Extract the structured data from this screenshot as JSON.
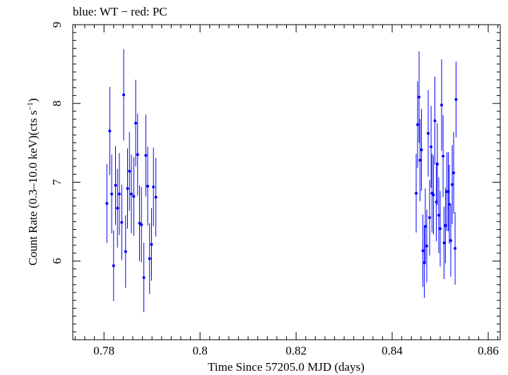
{
  "chart_data": {
    "type": "scatter",
    "title": "blue: WT − red: PC",
    "xlabel": "Time Since 57205.0 MJD (days)",
    "ylabel_main": "Count Rate (0.3–10.0 keV)(cts s",
    "ylabel_sup": "−1",
    "ylabel_end": ")",
    "xlim": [
      0.7735,
      0.8625
    ],
    "ylim": [
      5.0,
      9.0
    ],
    "x_ticks": [
      0.78,
      0.8,
      0.82,
      0.84,
      0.86
    ],
    "x_tick_labels": [
      "0.78",
      "0.8",
      "0.82",
      "0.84",
      "0.86"
    ],
    "y_ticks": [
      6,
      7,
      8,
      9
    ],
    "y_tick_labels": [
      "6",
      "7",
      "8",
      "9"
    ],
    "grid": false,
    "series": [
      {
        "name": "WT",
        "color": "#0000ff",
        "points": [
          {
            "x": 0.7806,
            "y": 6.73,
            "err": 0.5
          },
          {
            "x": 0.7812,
            "y": 7.65,
            "err": 0.56
          },
          {
            "x": 0.7816,
            "y": 6.85,
            "err": 0.5
          },
          {
            "x": 0.782,
            "y": 5.94,
            "err": 0.45
          },
          {
            "x": 0.7824,
            "y": 6.96,
            "err": 0.5
          },
          {
            "x": 0.7828,
            "y": 6.67,
            "err": 0.5
          },
          {
            "x": 0.7832,
            "y": 6.85,
            "err": 0.52
          },
          {
            "x": 0.7837,
            "y": 6.49,
            "err": 0.48
          },
          {
            "x": 0.7841,
            "y": 8.11,
            "err": 0.58
          },
          {
            "x": 0.7845,
            "y": 6.12,
            "err": 0.46
          },
          {
            "x": 0.7849,
            "y": 6.92,
            "err": 0.51
          },
          {
            "x": 0.7853,
            "y": 7.14,
            "err": 0.5
          },
          {
            "x": 0.7857,
            "y": 6.85,
            "err": 0.5
          },
          {
            "x": 0.7862,
            "y": 6.82,
            "err": 0.5
          },
          {
            "x": 0.7866,
            "y": 7.75,
            "err": 0.55
          },
          {
            "x": 0.787,
            "y": 7.35,
            "err": 0.52
          },
          {
            "x": 0.7874,
            "y": 6.48,
            "err": 0.48
          },
          {
            "x": 0.7878,
            "y": 6.46,
            "err": 0.48
          },
          {
            "x": 0.7883,
            "y": 5.79,
            "err": 0.44
          },
          {
            "x": 0.7887,
            "y": 7.34,
            "err": 0.52
          },
          {
            "x": 0.7891,
            "y": 6.95,
            "err": 0.5
          },
          {
            "x": 0.7895,
            "y": 6.03,
            "err": 0.45
          },
          {
            "x": 0.7899,
            "y": 6.21,
            "err": 0.46
          },
          {
            "x": 0.7903,
            "y": 6.94,
            "err": 0.5
          },
          {
            "x": 0.7908,
            "y": 6.81,
            "err": 0.5
          }
        ]
      },
      {
        "name": "WT",
        "color": "#0000ff",
        "points": [
          {
            "x": 0.845,
            "y": 6.86,
            "err": 0.5
          },
          {
            "x": 0.8453,
            "y": 7.73,
            "err": 0.55
          },
          {
            "x": 0.8456,
            "y": 8.08,
            "err": 0.58
          },
          {
            "x": 0.8458,
            "y": 7.28,
            "err": 0.52
          },
          {
            "x": 0.8461,
            "y": 7.41,
            "err": 0.52
          },
          {
            "x": 0.8464,
            "y": 6.13,
            "err": 0.46
          },
          {
            "x": 0.8467,
            "y": 5.98,
            "err": 0.45
          },
          {
            "x": 0.8469,
            "y": 6.44,
            "err": 0.48
          },
          {
            "x": 0.8472,
            "y": 6.19,
            "err": 0.46
          },
          {
            "x": 0.8475,
            "y": 7.62,
            "err": 0.55
          },
          {
            "x": 0.8478,
            "y": 6.55,
            "err": 0.48
          },
          {
            "x": 0.8481,
            "y": 7.45,
            "err": 0.52
          },
          {
            "x": 0.8483,
            "y": 6.86,
            "err": 0.5
          },
          {
            "x": 0.8486,
            "y": 6.84,
            "err": 0.5
          },
          {
            "x": 0.8489,
            "y": 7.78,
            "err": 0.56
          },
          {
            "x": 0.8492,
            "y": 6.75,
            "err": 0.5
          },
          {
            "x": 0.8494,
            "y": 7.23,
            "err": 0.52
          },
          {
            "x": 0.8497,
            "y": 6.58,
            "err": 0.48
          },
          {
            "x": 0.85,
            "y": 6.41,
            "err": 0.48
          },
          {
            "x": 0.8503,
            "y": 7.98,
            "err": 0.58
          },
          {
            "x": 0.8506,
            "y": 7.33,
            "err": 0.52
          },
          {
            "x": 0.8508,
            "y": 6.23,
            "err": 0.46
          },
          {
            "x": 0.8511,
            "y": 6.45,
            "err": 0.48
          },
          {
            "x": 0.8514,
            "y": 6.88,
            "err": 0.5
          },
          {
            "x": 0.8517,
            "y": 6.88,
            "err": 0.5
          },
          {
            "x": 0.8519,
            "y": 6.72,
            "err": 0.5
          },
          {
            "x": 0.8522,
            "y": 6.26,
            "err": 0.46
          },
          {
            "x": 0.8525,
            "y": 6.97,
            "err": 0.5
          },
          {
            "x": 0.8528,
            "y": 7.12,
            "err": 0.52
          },
          {
            "x": 0.8531,
            "y": 6.16,
            "err": 0.46
          },
          {
            "x": 0.8533,
            "y": 8.05,
            "err": 0.48
          }
        ]
      }
    ]
  }
}
